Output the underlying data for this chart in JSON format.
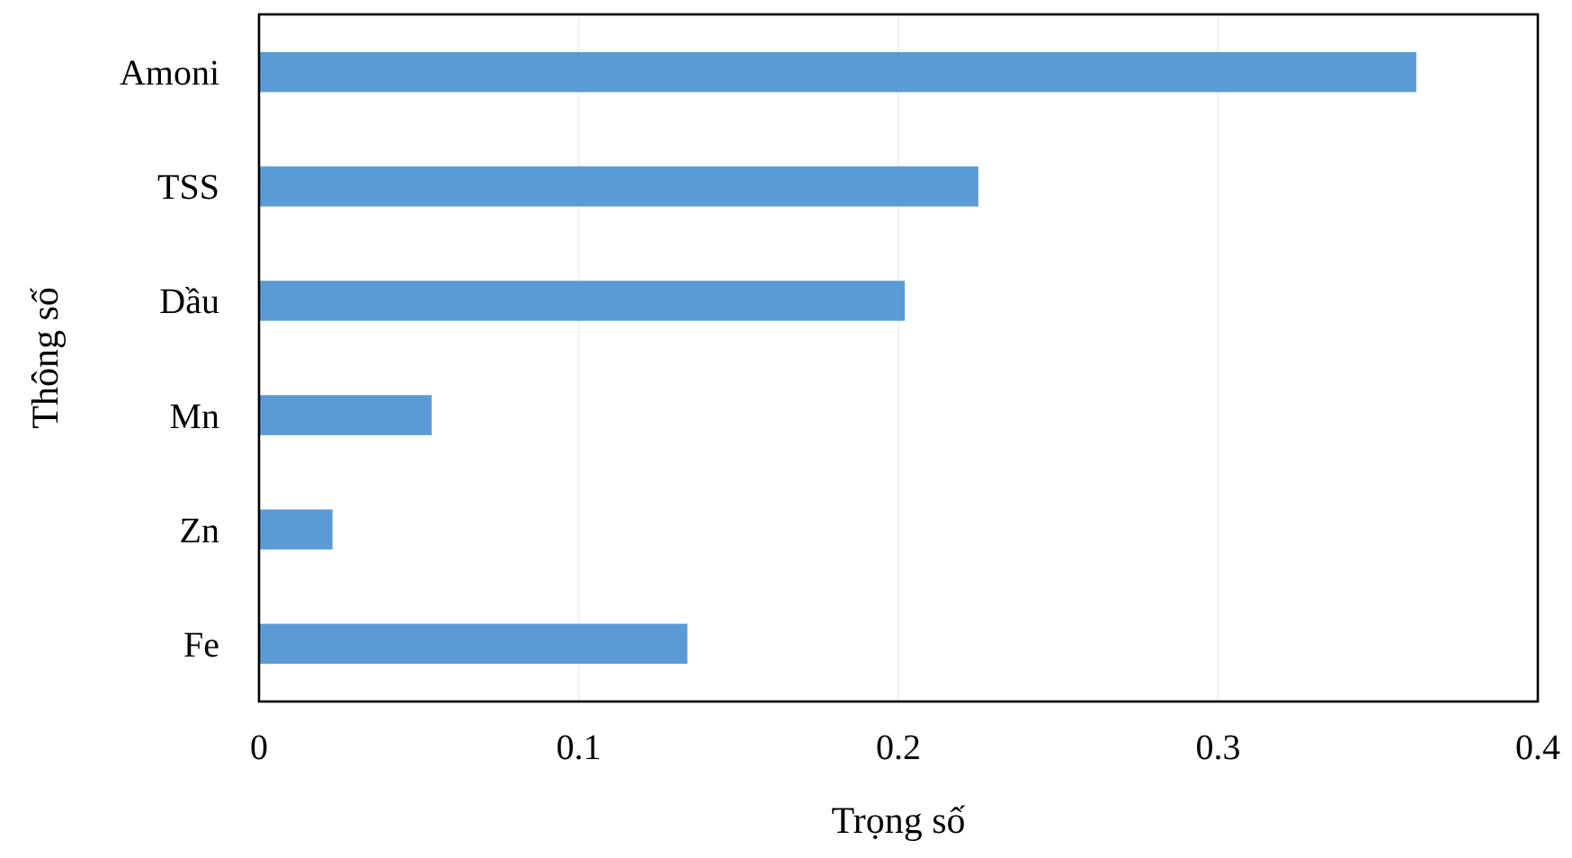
{
  "chart_data": {
    "type": "bar",
    "orientation": "horizontal",
    "xlabel": "Trọng số",
    "ylabel": "Thông số",
    "categories": [
      "Amoni",
      "TSS",
      "Dầu",
      "Mn",
      "Zn",
      "Fe"
    ],
    "values": [
      0.362,
      0.225,
      0.202,
      0.054,
      0.023,
      0.134
    ],
    "color": "#5b9bd5",
    "xlim": [
      0,
      0.4
    ],
    "xticks": [
      0,
      0.1,
      0.2,
      0.3,
      0.4
    ],
    "grid": "x"
  }
}
